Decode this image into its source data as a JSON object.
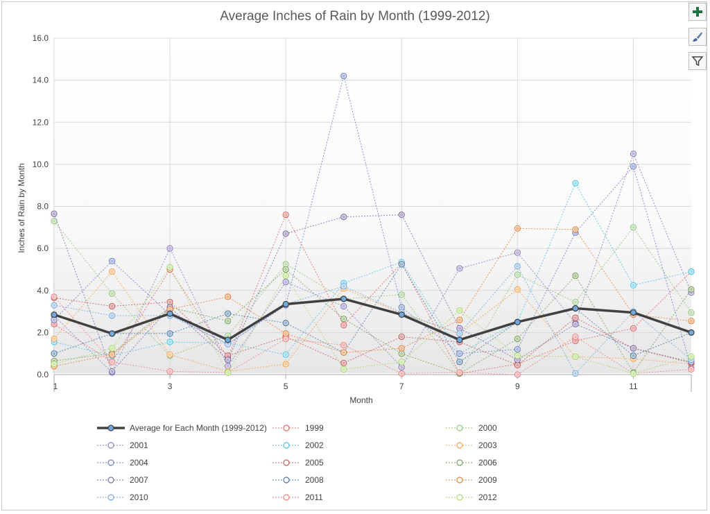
{
  "toolbar": {
    "add_icon": "plus-icon",
    "style_icon": "paintbrush-icon",
    "filter_icon": "funnel-icon",
    "accent": "#217346"
  },
  "chart_data": {
    "type": "line",
    "title": "Average Inches of Rain by Month (1999-2012)",
    "xlabel": "Month",
    "ylabel": "Inches of Rain by Month",
    "x": [
      1,
      2,
      3,
      4,
      5,
      6,
      7,
      8,
      9,
      10,
      11,
      12
    ],
    "xticks": [
      "1",
      "3",
      "5",
      "7",
      "9",
      "11"
    ],
    "yticks": [
      "0.0",
      "2.0",
      "4.0",
      "6.0",
      "8.0",
      "10.0",
      "12.0",
      "14.0",
      "16.0"
    ],
    "ylim": [
      0,
      16
    ],
    "grid": true,
    "legend": "bottom",
    "series": [
      {
        "name": "Average for Each Month (1999-2012)",
        "color": "#404040",
        "values": [
          2.85,
          1.95,
          2.9,
          1.65,
          3.35,
          3.6,
          2.85,
          1.65,
          2.5,
          3.15,
          2.95,
          2.0
        ]
      },
      {
        "name": "1999",
        "color": "#e06666",
        "values": [
          2.4,
          0.6,
          5.0,
          0.8,
          7.6,
          2.35,
          5.3,
          0.05,
          0.5,
          1.6,
          2.2,
          4.9
        ]
      },
      {
        "name": "2000",
        "color": "#93c47d",
        "values": [
          7.3,
          3.85,
          0.9,
          1.85,
          5.25,
          3.6,
          3.8,
          0.05,
          4.75,
          3.45,
          7.0,
          2.95
        ]
      },
      {
        "name": "2001",
        "color": "#8e7cc3",
        "values": [
          2.8,
          0.1,
          6.0,
          0.4,
          4.4,
          3.25,
          0.35,
          5.05,
          5.8,
          2.45,
          10.5,
          3.9
        ]
      },
      {
        "name": "2002",
        "color": "#4fc3e8",
        "values": [
          1.55,
          0.9,
          1.55,
          1.5,
          0.95,
          4.35,
          5.35,
          1.0,
          2.5,
          9.1,
          4.25,
          4.9
        ]
      },
      {
        "name": "2003",
        "color": "#f6a54f",
        "values": [
          1.7,
          4.9,
          0.95,
          0.15,
          0.5,
          4.1,
          2.9,
          1.95,
          4.05,
          0.85,
          0.75,
          0.5
        ]
      },
      {
        "name": "2004",
        "color": "#6d7fcc",
        "values": [
          2.6,
          5.4,
          2.85,
          1.45,
          3.3,
          14.2,
          3.2,
          1.0,
          1.2,
          6.75,
          9.9,
          0.3
        ]
      },
      {
        "name": "2005",
        "color": "#c65c5c",
        "values": [
          3.65,
          3.25,
          3.45,
          0.9,
          1.8,
          0.55,
          1.8,
          1.55,
          0.45,
          2.7,
          1.25,
          0.55
        ]
      },
      {
        "name": "2006",
        "color": "#76a05a",
        "values": [
          0.65,
          1.0,
          3.2,
          2.55,
          5.0,
          2.65,
          1.0,
          0.05,
          1.7,
          4.7,
          0.1,
          4.05
        ]
      },
      {
        "name": "2007",
        "color": "#7d6ba8",
        "values": [
          7.65,
          0.15,
          3.2,
          0.7,
          6.7,
          7.5,
          7.6,
          2.2,
          0.7,
          2.4,
          1.25,
          0.6
        ]
      },
      {
        "name": "2008",
        "color": "#4a78a5",
        "values": [
          1.0,
          1.95,
          1.95,
          2.9,
          2.45,
          1.05,
          5.25,
          0.6,
          2.5,
          3.15,
          0.9,
          2.0
        ]
      },
      {
        "name": "2009",
        "color": "#e8813a",
        "values": [
          0.4,
          0.95,
          3.1,
          3.7,
          1.95,
          1.05,
          1.25,
          2.6,
          6.95,
          6.9,
          2.85,
          2.55
        ]
      },
      {
        "name": "2010",
        "color": "#78a9e0",
        "values": [
          3.3,
          2.8,
          2.8,
          1.45,
          3.35,
          4.2,
          2.95,
          1.95,
          5.15,
          0.05,
          3.0,
          0.7
        ]
      },
      {
        "name": "2011",
        "color": "#f08080",
        "values": [
          3.7,
          0.6,
          0.15,
          0.1,
          1.7,
          1.4,
          0.05,
          0.1,
          0.0,
          1.8,
          0.05,
          0.25
        ]
      },
      {
        "name": "2012",
        "color": "#a8d86e",
        "values": [
          0.5,
          1.25,
          5.1,
          0.1,
          4.7,
          0.25,
          0.6,
          3.05,
          0.9,
          0.85,
          0.05,
          0.85
        ]
      }
    ]
  }
}
